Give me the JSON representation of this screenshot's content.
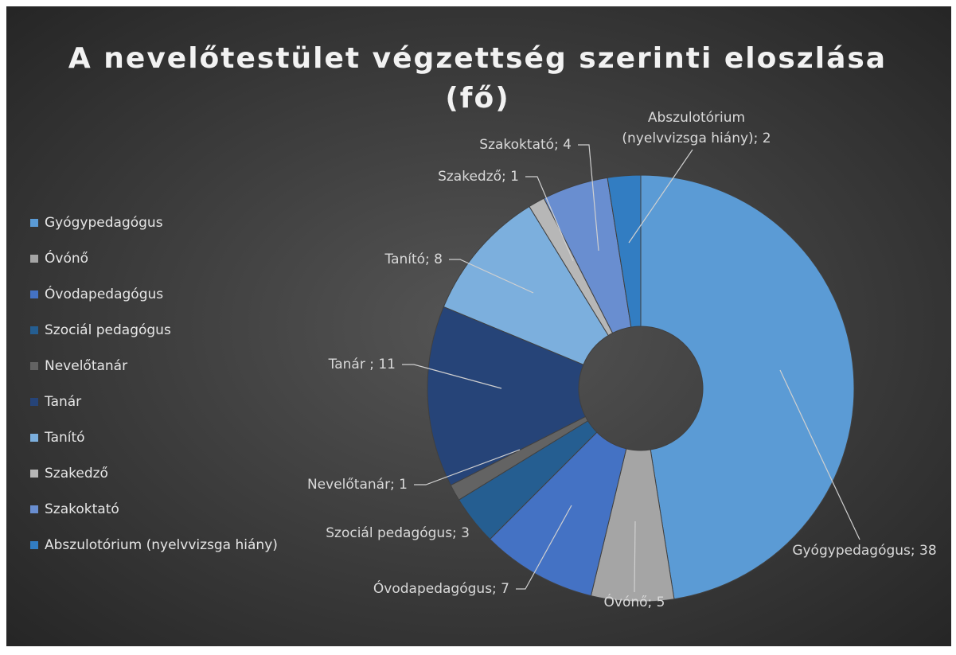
{
  "chart_data": {
    "type": "donut",
    "title": "A nevelőtestület végzettség szerinti eloszlása (fő)",
    "categories": [
      "Gyógypedagógus",
      "Óvónő",
      "Óvodapedagógus",
      "Szociál pedagógus",
      "Nevelőtanár",
      "Tanár",
      "Tanító",
      "Szakedző",
      "Szakoktató",
      "Abszulotórium (nyelvvizsga hiány)"
    ],
    "values": [
      38,
      5,
      7,
      3,
      1,
      11,
      8,
      1,
      4,
      2
    ],
    "value_labels": [
      "Gyógypedagógus; 38",
      "Óvónő; 5",
      "Óvodapedagógus; 7",
      "Szociál pedagógus; 3",
      "Nevelőtanár; 1",
      "Tanár ; 11",
      "Tanító; 8",
      "Szakedző; 1",
      "Szakoktató; 4",
      "Abszulotórium (nyelvvizsga hiány); 2"
    ],
    "colors": [
      "#5b9bd5",
      "#a5a5a5",
      "#4472c4",
      "#255e91",
      "#636363",
      "#264478",
      "#7cafdd",
      "#b7b7b7",
      "#698ed0",
      "#327dc2"
    ],
    "legend": "left"
  }
}
